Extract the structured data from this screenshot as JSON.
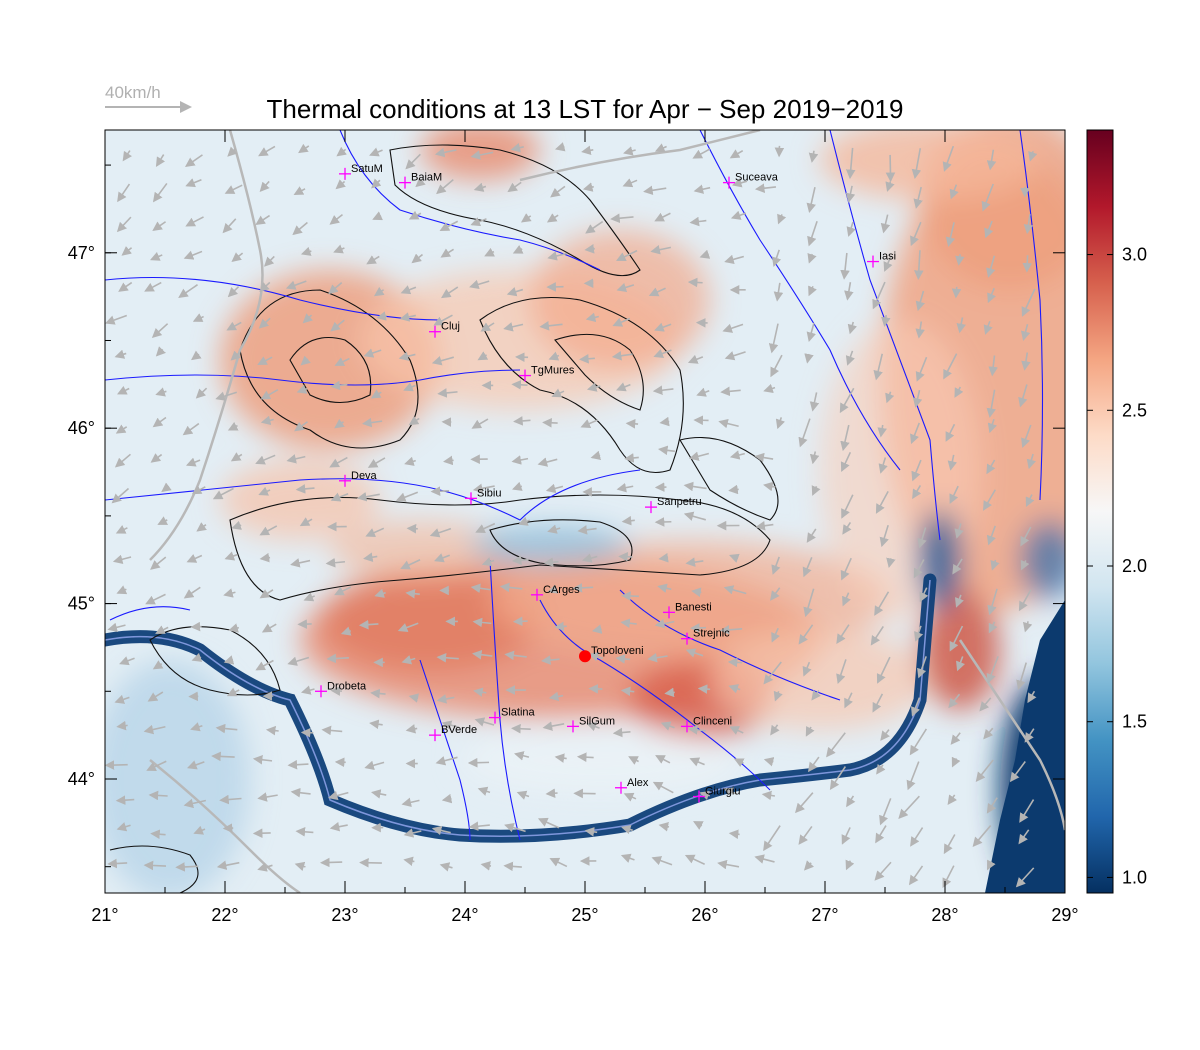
{
  "title": "Thermal conditions at 13 LST for Apr − Sep  2019−2019",
  "wind_scale": {
    "label": "40km/h"
  },
  "map": {
    "lon_range": [
      21,
      29
    ],
    "lat_range": [
      43.35,
      47.7
    ],
    "x_ticks": [
      "21°",
      "22°",
      "23°",
      "24°",
      "25°",
      "26°",
      "27°",
      "28°",
      "29°"
    ],
    "y_ticks": [
      "47°",
      "46°",
      "45°",
      "44°"
    ],
    "highlight_station": "Topoloveni",
    "marker_color": "#ff00ff",
    "highlight_color": "#ff0000",
    "river_color": "#1a1aff",
    "wind_arrow_color": "#b4b4b4"
  },
  "cities": [
    {
      "name": "SatuM",
      "lon": 23.0,
      "lat": 47.45
    },
    {
      "name": "BaiaM",
      "lon": 23.5,
      "lat": 47.4
    },
    {
      "name": "Suceava",
      "lon": 26.2,
      "lat": 47.4
    },
    {
      "name": "Iasi",
      "lon": 27.4,
      "lat": 46.95
    },
    {
      "name": "Cluj",
      "lon": 23.75,
      "lat": 46.55
    },
    {
      "name": "TgMures",
      "lon": 24.5,
      "lat": 46.3
    },
    {
      "name": "Deva",
      "lon": 23.0,
      "lat": 45.7
    },
    {
      "name": "Sibiu",
      "lon": 24.05,
      "lat": 45.6
    },
    {
      "name": "Sanpetru",
      "lon": 25.55,
      "lat": 45.55
    },
    {
      "name": "CArges",
      "lon": 24.6,
      "lat": 45.05
    },
    {
      "name": "Banesti",
      "lon": 25.7,
      "lat": 44.95
    },
    {
      "name": "Strejnic",
      "lon": 25.85,
      "lat": 44.8
    },
    {
      "name": "Topoloveni",
      "lon": 25.0,
      "lat": 44.7
    },
    {
      "name": "Drobeta",
      "lon": 22.8,
      "lat": 44.5
    },
    {
      "name": "Slatina",
      "lon": 24.25,
      "lat": 44.35
    },
    {
      "name": "SilGum",
      "lon": 24.9,
      "lat": 44.3
    },
    {
      "name": "Clinceni",
      "lon": 25.85,
      "lat": 44.3
    },
    {
      "name": "BVerde",
      "lon": 23.75,
      "lat": 44.25
    },
    {
      "name": "Alex",
      "lon": 25.3,
      "lat": 43.95
    },
    {
      "name": "Giurgiu",
      "lon": 25.95,
      "lat": 43.9
    }
  ],
  "colorbar": {
    "min": 0.95,
    "max": 3.4,
    "ticks": [
      "1.0",
      "1.5",
      "2.0",
      "2.5",
      "3.0"
    ],
    "tick_values": [
      1.0,
      1.5,
      2.0,
      2.5,
      3.0
    ],
    "colors": [
      "#053061",
      "#2166ac",
      "#4393c3",
      "#92c5de",
      "#d1e5f0",
      "#f7f7f7",
      "#fddbc7",
      "#f4a582",
      "#d6604d",
      "#b2182b",
      "#67001f"
    ]
  }
}
